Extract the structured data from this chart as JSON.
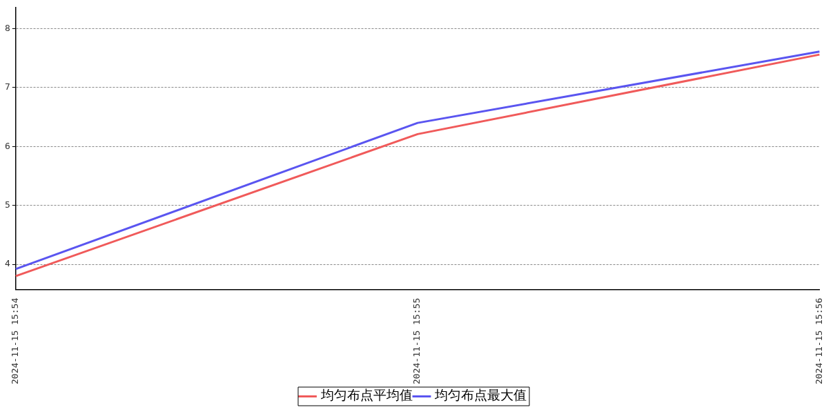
{
  "chart_data": {
    "type": "line",
    "categories": [
      "2024-11-15 15:54",
      "2024-11-15 15:55",
      "2024-11-15 15:56"
    ],
    "series": [
      {
        "name": "均匀布点平均值",
        "color": "#f05a5a",
        "values": [
          3.8,
          6.21,
          7.56
        ]
      },
      {
        "name": "均匀布点最大值",
        "color": "#5a55f0",
        "values": [
          3.92,
          6.4,
          7.61
        ]
      }
    ],
    "ylim": [
      3.57,
      8.36
    ],
    "yticks": [
      4,
      5,
      6,
      7,
      8
    ],
    "grid": "y",
    "legend": "bottom",
    "marker": "none",
    "line_style": "solid"
  }
}
